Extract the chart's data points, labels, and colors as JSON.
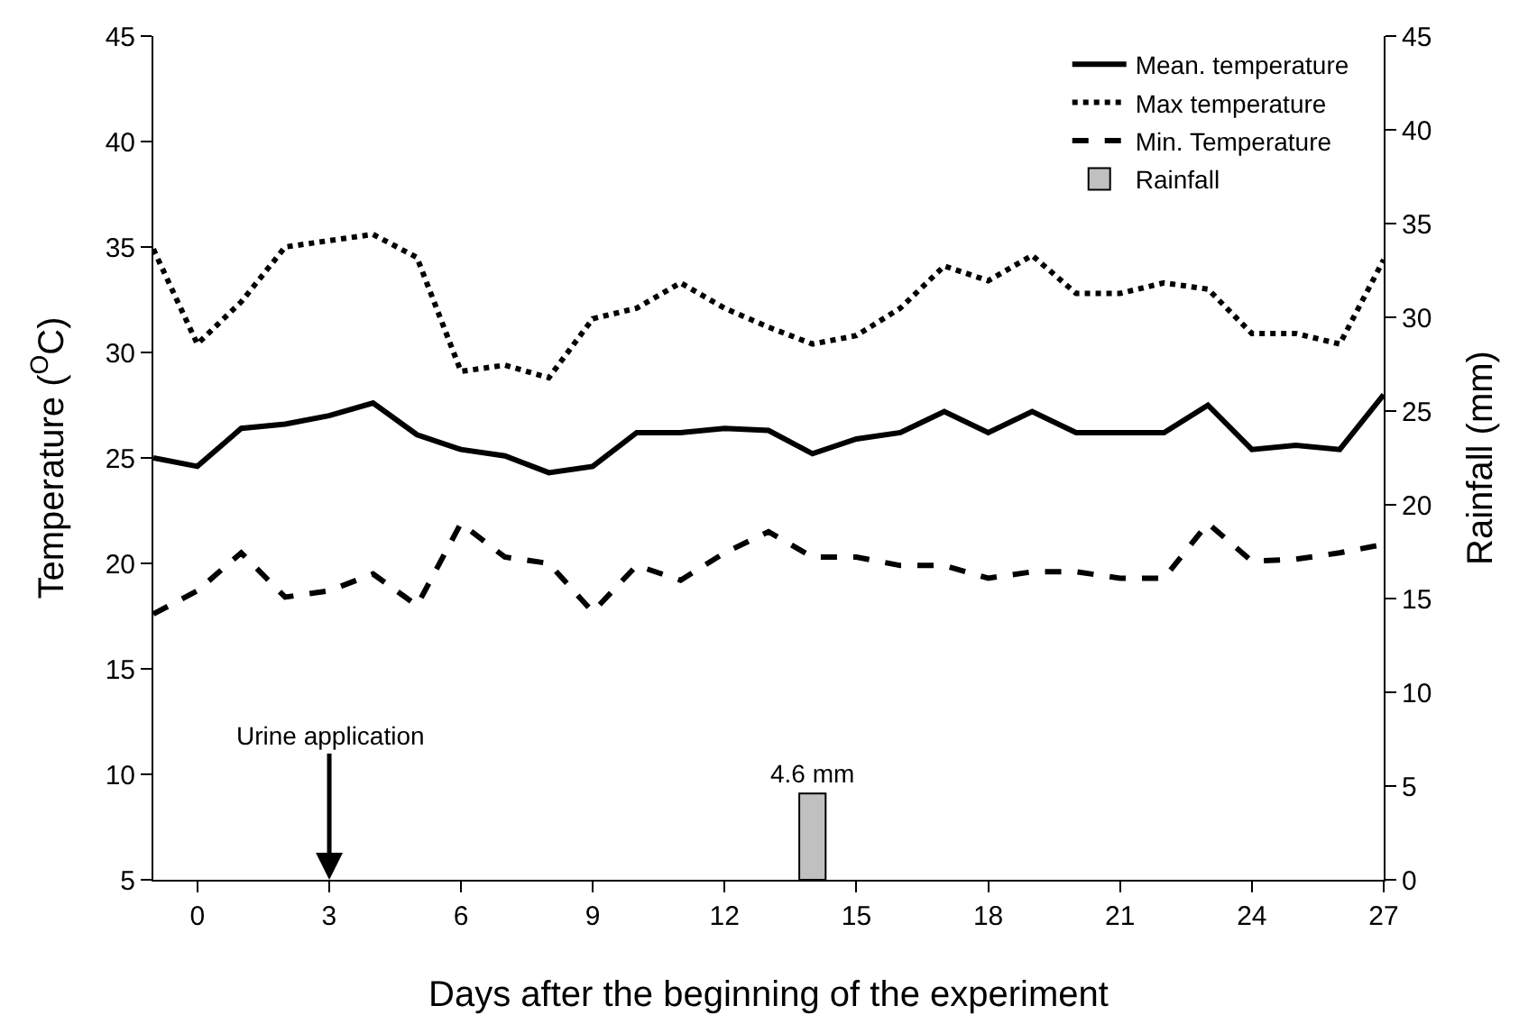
{
  "chart_data": {
    "type": "line",
    "xlabel": "Days after the beginning of the experiment",
    "ylabel": "Temperature ($^{O}$C)",
    "y2label": "Rainfall (mm)",
    "x": [
      -1,
      0,
      1,
      2,
      3,
      4,
      5,
      6,
      7,
      8,
      9,
      10,
      11,
      12,
      13,
      14,
      15,
      16,
      17,
      18,
      19,
      20,
      21,
      22,
      23,
      24,
      25,
      26,
      27
    ],
    "series": [
      {
        "name": "Mean. temperature",
        "color": "#000000",
        "line_style": "solid",
        "values": [
          25.0,
          24.6,
          26.4,
          26.6,
          27.0,
          27.6,
          26.1,
          25.4,
          25.1,
          24.3,
          24.6,
          26.2,
          26.2,
          26.4,
          26.3,
          25.2,
          25.9,
          26.2,
          27.2,
          26.2,
          27.2,
          26.2,
          26.2,
          26.2,
          27.5,
          25.4,
          25.6,
          25.4,
          28.0
        ]
      },
      {
        "name": "Max temperature",
        "color": "#000000",
        "line_style": "dotted",
        "values": [
          34.9,
          30.4,
          32.4,
          35.0,
          35.3,
          35.6,
          34.5,
          29.1,
          29.4,
          28.8,
          31.6,
          32.1,
          33.3,
          32.1,
          31.2,
          30.4,
          30.8,
          32.1,
          34.1,
          33.4,
          34.6,
          32.8,
          32.8,
          33.3,
          33.0,
          30.9,
          30.9,
          30.4,
          34.4
        ]
      },
      {
        "name": "Min. Temperature",
        "color": "#000000",
        "line_style": "dashed",
        "values": [
          17.6,
          18.7,
          20.5,
          18.4,
          18.7,
          19.5,
          18.0,
          21.9,
          20.3,
          20.0,
          17.7,
          19.9,
          19.2,
          20.5,
          21.5,
          20.3,
          20.3,
          19.9,
          19.9,
          19.3,
          19.6,
          19.6,
          19.3,
          19.3,
          21.9,
          20.1,
          20.2,
          20.5,
          20.9
        ]
      },
      {
        "name": "Rainfall",
        "type": "bar",
        "axis": "y2",
        "color": "#c0c0c0",
        "x": [
          14
        ],
        "values": [
          4.6
        ],
        "value_labels": [
          "4.6 mm"
        ]
      }
    ],
    "xlim": [
      -1,
      27
    ],
    "xticks": [
      0,
      3,
      6,
      9,
      12,
      15,
      18,
      21,
      24,
      27
    ],
    "ylim": [
      5,
      45
    ],
    "yticks": [
      5,
      10,
      15,
      20,
      25,
      30,
      35,
      40,
      45
    ],
    "y2lim": [
      0,
      45
    ],
    "y2ticks": [
      0,
      5,
      10,
      15,
      20,
      25,
      30,
      35,
      40,
      45
    ],
    "annotations": [
      "Urine application"
    ],
    "grid": false,
    "legend": "top right",
    "marker": "none"
  }
}
